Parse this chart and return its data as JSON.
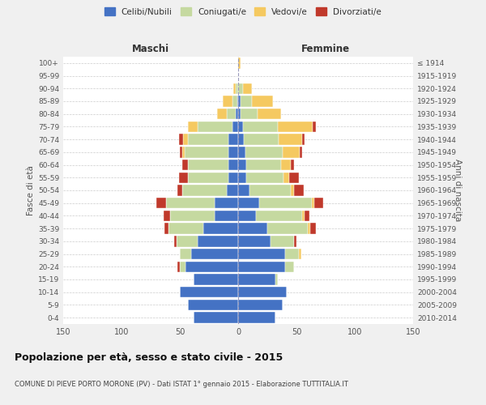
{
  "age_groups": [
    "0-4",
    "5-9",
    "10-14",
    "15-19",
    "20-24",
    "25-29",
    "30-34",
    "35-39",
    "40-44",
    "45-49",
    "50-54",
    "55-59",
    "60-64",
    "65-69",
    "70-74",
    "75-79",
    "80-84",
    "85-89",
    "90-94",
    "95-99",
    "100+"
  ],
  "birth_years": [
    "2010-2014",
    "2005-2009",
    "2000-2004",
    "1995-1999",
    "1990-1994",
    "1985-1989",
    "1980-1984",
    "1975-1979",
    "1970-1974",
    "1965-1969",
    "1960-1964",
    "1955-1959",
    "1950-1954",
    "1945-1949",
    "1940-1944",
    "1935-1939",
    "1930-1934",
    "1925-1929",
    "1920-1924",
    "1915-1919",
    "≤ 1914"
  ],
  "maschi_celibe": [
    38,
    43,
    50,
    38,
    45,
    40,
    35,
    30,
    20,
    20,
    10,
    8,
    8,
    8,
    8,
    5,
    2,
    1,
    0,
    0,
    0
  ],
  "maschi_coniugato": [
    0,
    0,
    0,
    0,
    5,
    10,
    18,
    30,
    38,
    42,
    38,
    35,
    35,
    38,
    35,
    30,
    8,
    4,
    2,
    0,
    0
  ],
  "maschi_vedovo": [
    0,
    0,
    0,
    0,
    0,
    0,
    0,
    0,
    0,
    0,
    0,
    0,
    0,
    2,
    4,
    8,
    8,
    8,
    2,
    0,
    0
  ],
  "maschi_divorziato": [
    0,
    0,
    0,
    0,
    2,
    0,
    2,
    3,
    6,
    8,
    4,
    8,
    5,
    2,
    4,
    0,
    0,
    0,
    0,
    0,
    0
  ],
  "femmine_celibe": [
    32,
    38,
    42,
    32,
    40,
    40,
    28,
    25,
    15,
    18,
    10,
    7,
    7,
    6,
    5,
    4,
    2,
    2,
    0,
    0,
    0
  ],
  "femmine_coniugato": [
    0,
    0,
    0,
    2,
    8,
    12,
    20,
    35,
    40,
    45,
    35,
    32,
    30,
    32,
    30,
    30,
    15,
    10,
    4,
    0,
    0
  ],
  "femmine_vedovo": [
    0,
    0,
    0,
    0,
    0,
    2,
    0,
    2,
    2,
    2,
    3,
    5,
    8,
    15,
    20,
    30,
    20,
    18,
    8,
    0,
    2
  ],
  "femmine_divorziato": [
    0,
    0,
    0,
    0,
    0,
    0,
    2,
    5,
    4,
    8,
    8,
    8,
    3,
    2,
    2,
    3,
    0,
    0,
    0,
    0,
    0
  ],
  "color_celibe": "#4472c4",
  "color_coniugato": "#c5d9a0",
  "color_vedovo": "#f5c960",
  "color_divorziato": "#c0392b",
  "title": "Popolazione per età, sesso e stato civile - 2015",
  "subtitle": "COMUNE DI PIEVE PORTO MORONE (PV) - Dati ISTAT 1° gennaio 2015 - Elaborazione TUTTITALIA.IT",
  "label_maschi": "Maschi",
  "label_femmine": "Femmine",
  "ylabel_left": "Fasce di età",
  "ylabel_right": "Anni di nascita",
  "xlim": 150,
  "background_color": "#f0f0f0",
  "plot_background": "#ffffff",
  "grid_color": "#cccccc"
}
